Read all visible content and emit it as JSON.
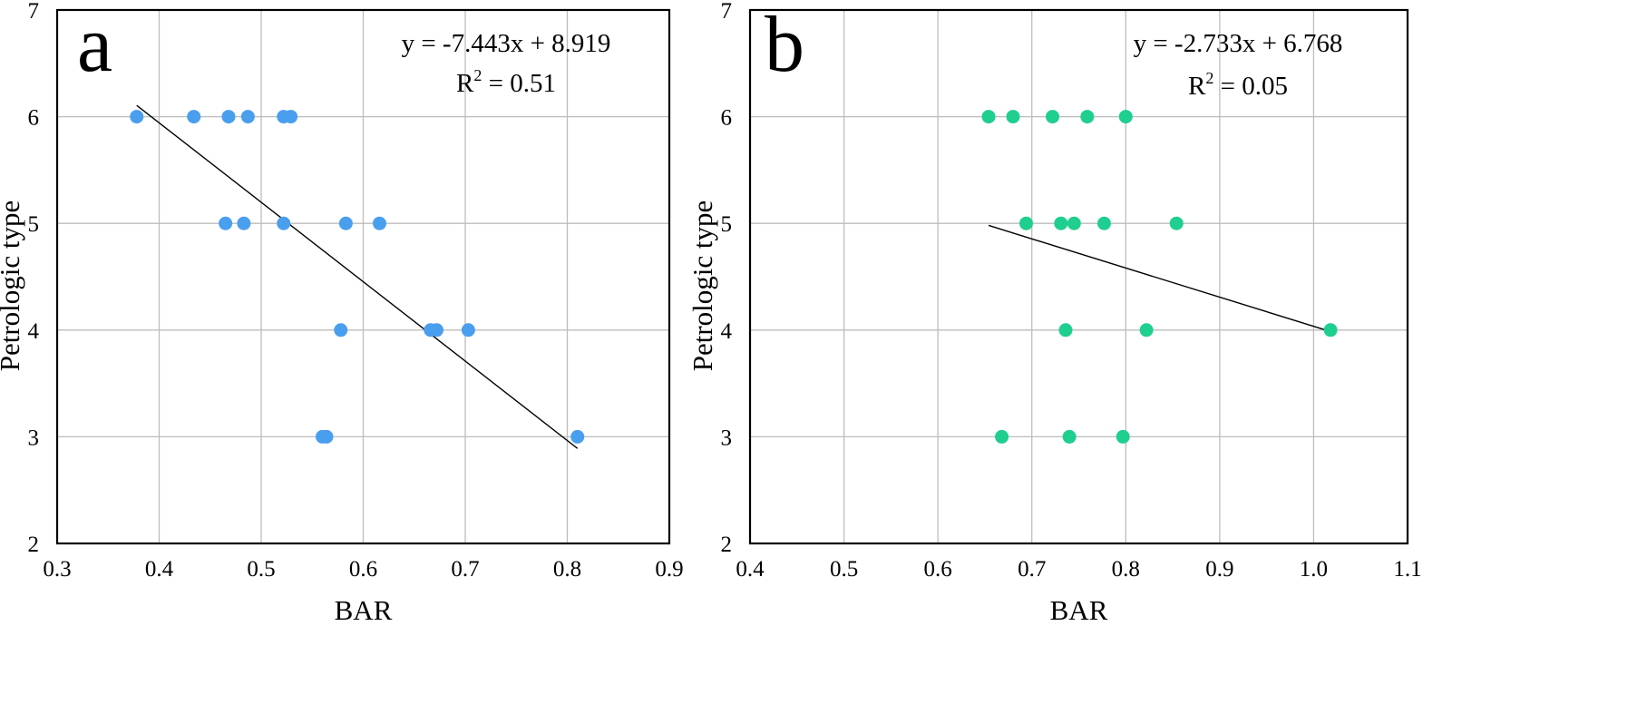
{
  "chart_data": [
    {
      "type": "scatter",
      "panel": "a",
      "xlabel": "BAR",
      "ylabel": "Petrologic type",
      "xlim": [
        0.3,
        0.9
      ],
      "ylim": [
        2,
        7
      ],
      "xticks": [
        0.3,
        0.4,
        0.5,
        0.6,
        0.7,
        0.8,
        0.9
      ],
      "yticks": [
        2,
        3,
        4,
        5,
        6,
        7
      ],
      "xtick_labels": [
        "0.3",
        "0.4",
        "0.5",
        "0.6",
        "0.7",
        "0.8",
        "0.9"
      ],
      "ytick_labels": [
        "2",
        "3",
        "4",
        "5",
        "6",
        "7"
      ],
      "grid": true,
      "marker_color": "#4a9eee",
      "equation": "y = -7.443x + 8.919",
      "r2_label": "R",
      "r2_sup": "2",
      "r2_value": " = 0.51",
      "fit": {
        "slope": -7.443,
        "intercept": 8.919,
        "x_range": [
          0.378,
          0.81
        ]
      },
      "points": [
        {
          "x": 0.378,
          "y": 6
        },
        {
          "x": 0.434,
          "y": 6
        },
        {
          "x": 0.468,
          "y": 6
        },
        {
          "x": 0.487,
          "y": 6
        },
        {
          "x": 0.522,
          "y": 6
        },
        {
          "x": 0.529,
          "y": 6
        },
        {
          "x": 0.465,
          "y": 5
        },
        {
          "x": 0.483,
          "y": 5
        },
        {
          "x": 0.522,
          "y": 5
        },
        {
          "x": 0.583,
          "y": 5
        },
        {
          "x": 0.616,
          "y": 5
        },
        {
          "x": 0.578,
          "y": 4
        },
        {
          "x": 0.666,
          "y": 4
        },
        {
          "x": 0.672,
          "y": 4
        },
        {
          "x": 0.703,
          "y": 4
        },
        {
          "x": 0.56,
          "y": 3
        },
        {
          "x": 0.564,
          "y": 3
        },
        {
          "x": 0.81,
          "y": 3
        }
      ]
    },
    {
      "type": "scatter",
      "panel": "b",
      "xlabel": "BAR",
      "ylabel": "Petrologic type",
      "xlim": [
        0.4,
        1.1
      ],
      "ylim": [
        2,
        7
      ],
      "xticks": [
        0.4,
        0.5,
        0.6,
        0.7,
        0.8,
        0.9,
        1.0,
        1.1
      ],
      "yticks": [
        2,
        3,
        4,
        5,
        6,
        7
      ],
      "xtick_labels": [
        "0.4",
        "0.5",
        "0.6",
        "0.7",
        "0.8",
        "0.9",
        "1.0",
        "1.1"
      ],
      "ytick_labels": [
        "2",
        "3",
        "4",
        "5",
        "6",
        "7"
      ],
      "grid": true,
      "marker_color": "#1fcf8f",
      "equation": "y = -2.733x + 6.768",
      "r2_label": "R",
      "r2_sup": "2",
      "r2_value": " = 0.05",
      "fit": {
        "slope": -2.733,
        "intercept": 6.768,
        "x_range": [
          0.654,
          1.018
        ]
      },
      "points": [
        {
          "x": 0.654,
          "y": 6
        },
        {
          "x": 0.68,
          "y": 6
        },
        {
          "x": 0.722,
          "y": 6
        },
        {
          "x": 0.759,
          "y": 6
        },
        {
          "x": 0.8,
          "y": 6
        },
        {
          "x": 0.694,
          "y": 5
        },
        {
          "x": 0.731,
          "y": 5
        },
        {
          "x": 0.745,
          "y": 5
        },
        {
          "x": 0.777,
          "y": 5
        },
        {
          "x": 0.854,
          "y": 5
        },
        {
          "x": 0.736,
          "y": 4
        },
        {
          "x": 0.822,
          "y": 4
        },
        {
          "x": 1.018,
          "y": 4
        },
        {
          "x": 0.668,
          "y": 3
        },
        {
          "x": 0.74,
          "y": 3
        },
        {
          "x": 0.797,
          "y": 3
        }
      ]
    }
  ]
}
